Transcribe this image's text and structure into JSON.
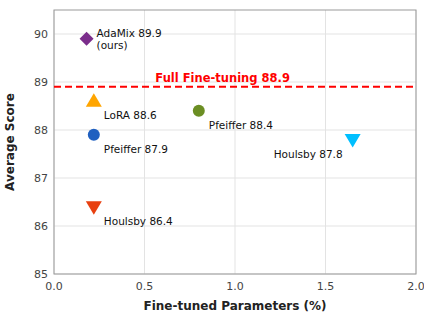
{
  "chart_data": {
    "type": "scatter",
    "xlabel": "Fine-tuned Parameters (%)",
    "ylabel": "Average Score",
    "xlim": [
      0,
      2.0
    ],
    "ylim": [
      85,
      90.5
    ],
    "xticks": [
      {
        "value": 0,
        "label": "0.0"
      },
      0.5,
      {
        "value": 1.0,
        "label": "1.0"
      },
      1.5,
      {
        "value": 2.0,
        "label": "2.0"
      }
    ],
    "yticks": [
      85,
      86,
      87,
      88,
      89,
      90
    ],
    "grid": true,
    "series": [
      {
        "name": "AdaMix 89.9\n(ours)",
        "color": "#7B2D8B",
        "marker": "diamond",
        "x": [
          0.18
        ],
        "values": [
          89.9
        ]
      },
      {
        "name": "LoRA 88.6",
        "color": "#FFA500",
        "marker": "triangle-up",
        "x": [
          0.22
        ],
        "values": [
          88.6
        ]
      },
      {
        "name": "Pfeiffer 87.9",
        "color": "#2060C0",
        "marker": "circle",
        "x": [
          0.22
        ],
        "values": [
          87.9
        ]
      },
      {
        "name": "Houlsby 86.4",
        "color": "#E84010",
        "marker": "triangle-down",
        "x": [
          0.22
        ],
        "values": [
          86.4
        ]
      },
      {
        "name": "Pfeiffer 88.4",
        "color": "#6B8E23",
        "marker": "circle",
        "x": [
          0.8
        ],
        "values": [
          88.4
        ]
      },
      {
        "name": "Houlsby 87.8",
        "color": "#00BFFF",
        "marker": "triangle-down",
        "x": [
          1.65
        ],
        "values": [
          87.8
        ]
      }
    ],
    "annotations": [
      {
        "text": "Full Fine-tuning 88.9",
        "y": 88.9,
        "color": "#FF0000",
        "line_style": "dashed"
      }
    ]
  }
}
